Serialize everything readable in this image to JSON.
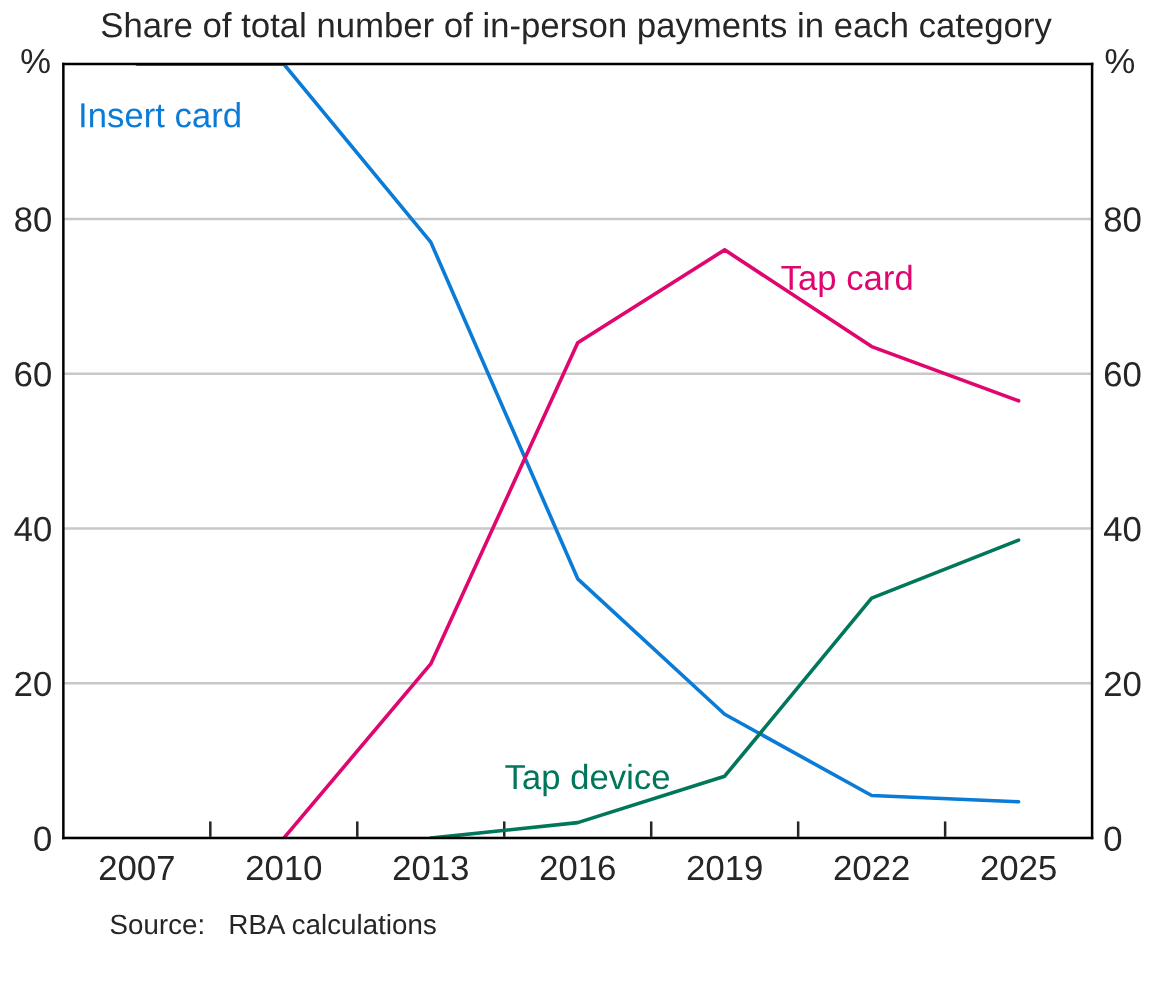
{
  "chart_data": {
    "type": "line",
    "subtitle": "Share of total number of in-person payments in each category",
    "x": [
      2007,
      2010,
      2013,
      2016,
      2019,
      2022,
      2025
    ],
    "series": [
      {
        "name": "Insert card",
        "color": "#0a7bd6",
        "values": [
          100,
          100,
          77,
          33.5,
          16,
          5.5,
          4.7
        ]
      },
      {
        "name": "Tap card",
        "color": "#e0066f",
        "values": [
          null,
          0,
          22.5,
          64,
          76,
          63.5,
          56.5
        ]
      },
      {
        "name": "Tap device",
        "color": "#00765a",
        "values": [
          null,
          null,
          0,
          2,
          8,
          31,
          38.5
        ]
      }
    ],
    "xlim": [
      2005.5,
      2026.5
    ],
    "xticks": [
      {
        "value": 2007,
        "label": "2007"
      },
      {
        "value": 2008.5,
        "label": null
      },
      {
        "value": 2010,
        "label": "2010"
      },
      {
        "value": 2011.5,
        "label": null
      },
      {
        "value": 2013,
        "label": "2013"
      },
      {
        "value": 2014.5,
        "label": null
      },
      {
        "value": 2016,
        "label": "2016"
      },
      {
        "value": 2017.5,
        "label": null
      },
      {
        "value": 2019,
        "label": "2019"
      },
      {
        "value": 2020.5,
        "label": null
      },
      {
        "value": 2022,
        "label": "2022"
      },
      {
        "value": 2023.5,
        "label": null
      },
      {
        "value": 2025,
        "label": "2025"
      }
    ],
    "ylim": [
      0,
      100
    ],
    "yticks": [
      0,
      20,
      40,
      60,
      80
    ],
    "y2lim": [
      0,
      100
    ],
    "y2ticks": [
      0,
      20,
      40,
      60,
      80
    ],
    "ylabel": "%",
    "y2label": "%",
    "grid": "y",
    "legend": false,
    "line_style": "solid",
    "marker": "none",
    "annotations": [
      "Source:   RBA calculations"
    ]
  }
}
